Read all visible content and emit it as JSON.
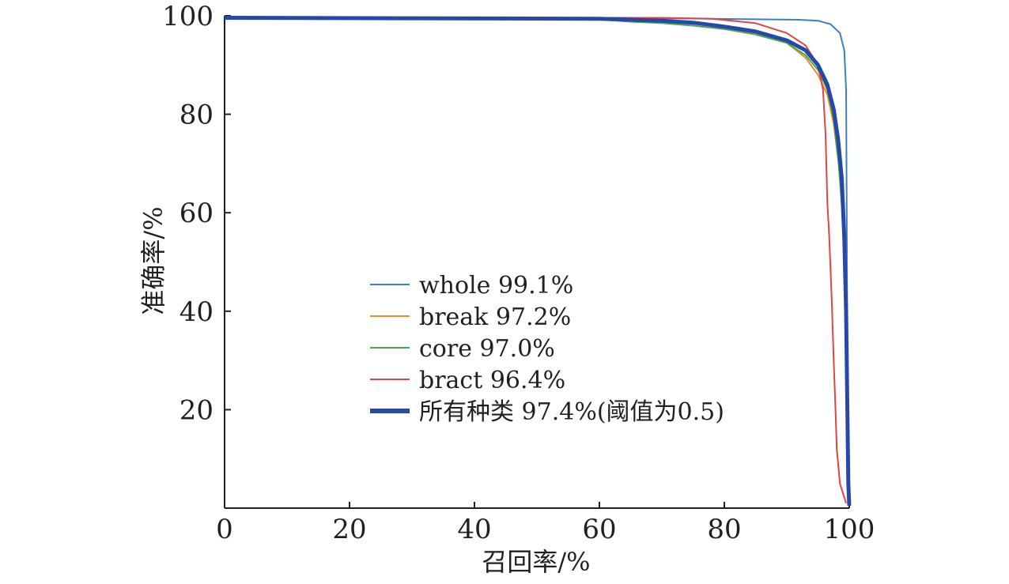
{
  "chart_data": {
    "type": "line",
    "title": "",
    "xlabel": "召回率/%",
    "ylabel": "准确率/%",
    "xlim": [
      0,
      100
    ],
    "ylim": [
      0,
      100
    ],
    "x_ticks": [
      "0",
      "20",
      "40",
      "60",
      "80",
      "100"
    ],
    "y_ticks": [
      "20",
      "40",
      "60",
      "80",
      "100"
    ],
    "grid": false,
    "legend_position": "center-left",
    "series": [
      {
        "name": "whole 99.1%",
        "color": "#3f7fbf",
        "emphasis": false,
        "points": [
          [
            0,
            99.6
          ],
          [
            40,
            99.6
          ],
          [
            70,
            99.5
          ],
          [
            85,
            99.3
          ],
          [
            92,
            99.2
          ],
          [
            95,
            99.0
          ],
          [
            97,
            98.3
          ],
          [
            98.5,
            96.5
          ],
          [
            99.2,
            93
          ],
          [
            99.5,
            85
          ],
          [
            99.6,
            60
          ],
          [
            99.7,
            30
          ],
          [
            99.8,
            5
          ],
          [
            100,
            1
          ]
        ]
      },
      {
        "name": "break 97.2%",
        "color": "#ef8a2e",
        "emphasis": false,
        "points": [
          [
            0,
            99.6
          ],
          [
            60,
            99.5
          ],
          [
            70,
            99.0
          ],
          [
            75,
            98.5
          ],
          [
            80,
            97.5
          ],
          [
            85,
            96.5
          ],
          [
            90,
            94.5
          ],
          [
            93,
            91.5
          ],
          [
            95,
            88
          ],
          [
            96.5,
            84
          ],
          [
            97.5,
            78
          ],
          [
            98.3,
            70
          ],
          [
            99,
            60
          ],
          [
            99.5,
            45
          ],
          [
            99.7,
            25
          ],
          [
            99.9,
            8
          ],
          [
            100,
            1
          ]
        ]
      },
      {
        "name": "core 97.0%",
        "color": "#4aa84a",
        "emphasis": false,
        "points": [
          [
            0,
            99.6
          ],
          [
            60,
            99.3
          ],
          [
            65,
            98.8
          ],
          [
            70,
            98.5
          ],
          [
            75,
            98.0
          ],
          [
            80,
            97.3
          ],
          [
            85,
            96.2
          ],
          [
            90,
            94.5
          ],
          [
            93,
            92
          ],
          [
            95,
            89
          ],
          [
            96.5,
            85
          ],
          [
            97.5,
            79
          ],
          [
            98.3,
            70
          ],
          [
            99,
            58
          ],
          [
            99.5,
            40
          ],
          [
            99.7,
            20
          ],
          [
            99.9,
            5
          ],
          [
            100,
            1
          ]
        ]
      },
      {
        "name": "bract 96.4%",
        "color": "#e04545",
        "emphasis": false,
        "points": [
          [
            0,
            99.6
          ],
          [
            70,
            99.6
          ],
          [
            78,
            99.4
          ],
          [
            85,
            98.5
          ],
          [
            90,
            96.5
          ],
          [
            93,
            94
          ],
          [
            95,
            90
          ],
          [
            95.8,
            85
          ],
          [
            96.2,
            76
          ],
          [
            96.5,
            62
          ],
          [
            96.8,
            55
          ],
          [
            97.2,
            42
          ],
          [
            97.5,
            30
          ],
          [
            97.8,
            20
          ],
          [
            98,
            12
          ],
          [
            98.5,
            5
          ],
          [
            99.5,
            1
          ]
        ]
      },
      {
        "name": "所有种类 97.4%(阈值为0.5)",
        "color": "#2649a8",
        "emphasis": true,
        "points": [
          [
            0,
            99.6
          ],
          [
            60,
            99.4
          ],
          [
            70,
            99.0
          ],
          [
            75,
            98.6
          ],
          [
            80,
            97.8
          ],
          [
            85,
            96.8
          ],
          [
            90,
            95
          ],
          [
            93,
            93
          ],
          [
            95,
            90
          ],
          [
            96.5,
            86
          ],
          [
            97.5,
            81
          ],
          [
            98.2,
            75
          ],
          [
            98.8,
            67
          ],
          [
            99.2,
            55
          ],
          [
            99.5,
            40
          ],
          [
            99.7,
            20
          ],
          [
            99.85,
            5
          ],
          [
            100,
            0.5
          ]
        ]
      }
    ]
  }
}
